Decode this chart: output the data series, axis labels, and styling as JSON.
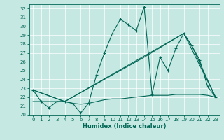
{
  "xlabel": "Humidex (Indice chaleur)",
  "xlim": [
    -0.5,
    23.5
  ],
  "ylim": [
    20,
    32.5
  ],
  "yticks": [
    20,
    21,
    22,
    23,
    24,
    25,
    26,
    27,
    28,
    29,
    30,
    31,
    32
  ],
  "xticks": [
    0,
    1,
    2,
    3,
    4,
    5,
    6,
    7,
    8,
    9,
    10,
    11,
    12,
    13,
    14,
    15,
    16,
    17,
    18,
    19,
    20,
    21,
    22,
    23
  ],
  "bg_color": "#c5e8e2",
  "line_color": "#006655",
  "series1": {
    "points": [
      [
        0,
        22.8
      ],
      [
        1,
        21.5
      ],
      [
        2,
        20.8
      ],
      [
        3,
        21.5
      ],
      [
        4,
        21.5
      ],
      [
        5,
        21.3
      ],
      [
        6,
        20.2
      ],
      [
        7,
        21.3
      ],
      [
        8,
        24.5
      ],
      [
        9,
        27.0
      ],
      [
        10,
        29.2
      ],
      [
        11,
        30.8
      ],
      [
        12,
        30.2
      ],
      [
        13,
        29.5
      ],
      [
        14,
        32.2
      ],
      [
        15,
        22.3
      ],
      [
        16,
        26.5
      ],
      [
        17,
        25.0
      ],
      [
        18,
        27.5
      ],
      [
        19,
        29.2
      ],
      [
        20,
        27.8
      ],
      [
        21,
        26.2
      ],
      [
        22,
        23.2
      ],
      [
        23,
        22.0
      ]
    ]
  },
  "series2": {
    "points": [
      [
        0,
        21.5
      ],
      [
        4,
        21.5
      ],
      [
        5,
        21.3
      ],
      [
        6,
        21.2
      ],
      [
        7,
        21.3
      ],
      [
        8,
        21.5
      ],
      [
        9,
        21.7
      ],
      [
        10,
        21.8
      ],
      [
        11,
        21.8
      ],
      [
        12,
        21.9
      ],
      [
        13,
        22.0
      ],
      [
        14,
        22.1
      ],
      [
        15,
        22.2
      ],
      [
        16,
        22.2
      ],
      [
        17,
        22.2
      ],
      [
        18,
        22.3
      ],
      [
        19,
        22.3
      ],
      [
        20,
        22.3
      ],
      [
        21,
        22.3
      ],
      [
        22,
        22.2
      ],
      [
        23,
        22.0
      ]
    ]
  },
  "series3": {
    "points": [
      [
        0,
        22.8
      ],
      [
        4,
        21.5
      ],
      [
        14,
        26.5
      ],
      [
        19,
        29.2
      ],
      [
        23,
        22.0
      ]
    ]
  },
  "series4": {
    "points": [
      [
        0,
        22.8
      ],
      [
        4,
        21.5
      ],
      [
        19,
        29.2
      ],
      [
        20,
        27.8
      ],
      [
        23,
        22.0
      ]
    ]
  }
}
